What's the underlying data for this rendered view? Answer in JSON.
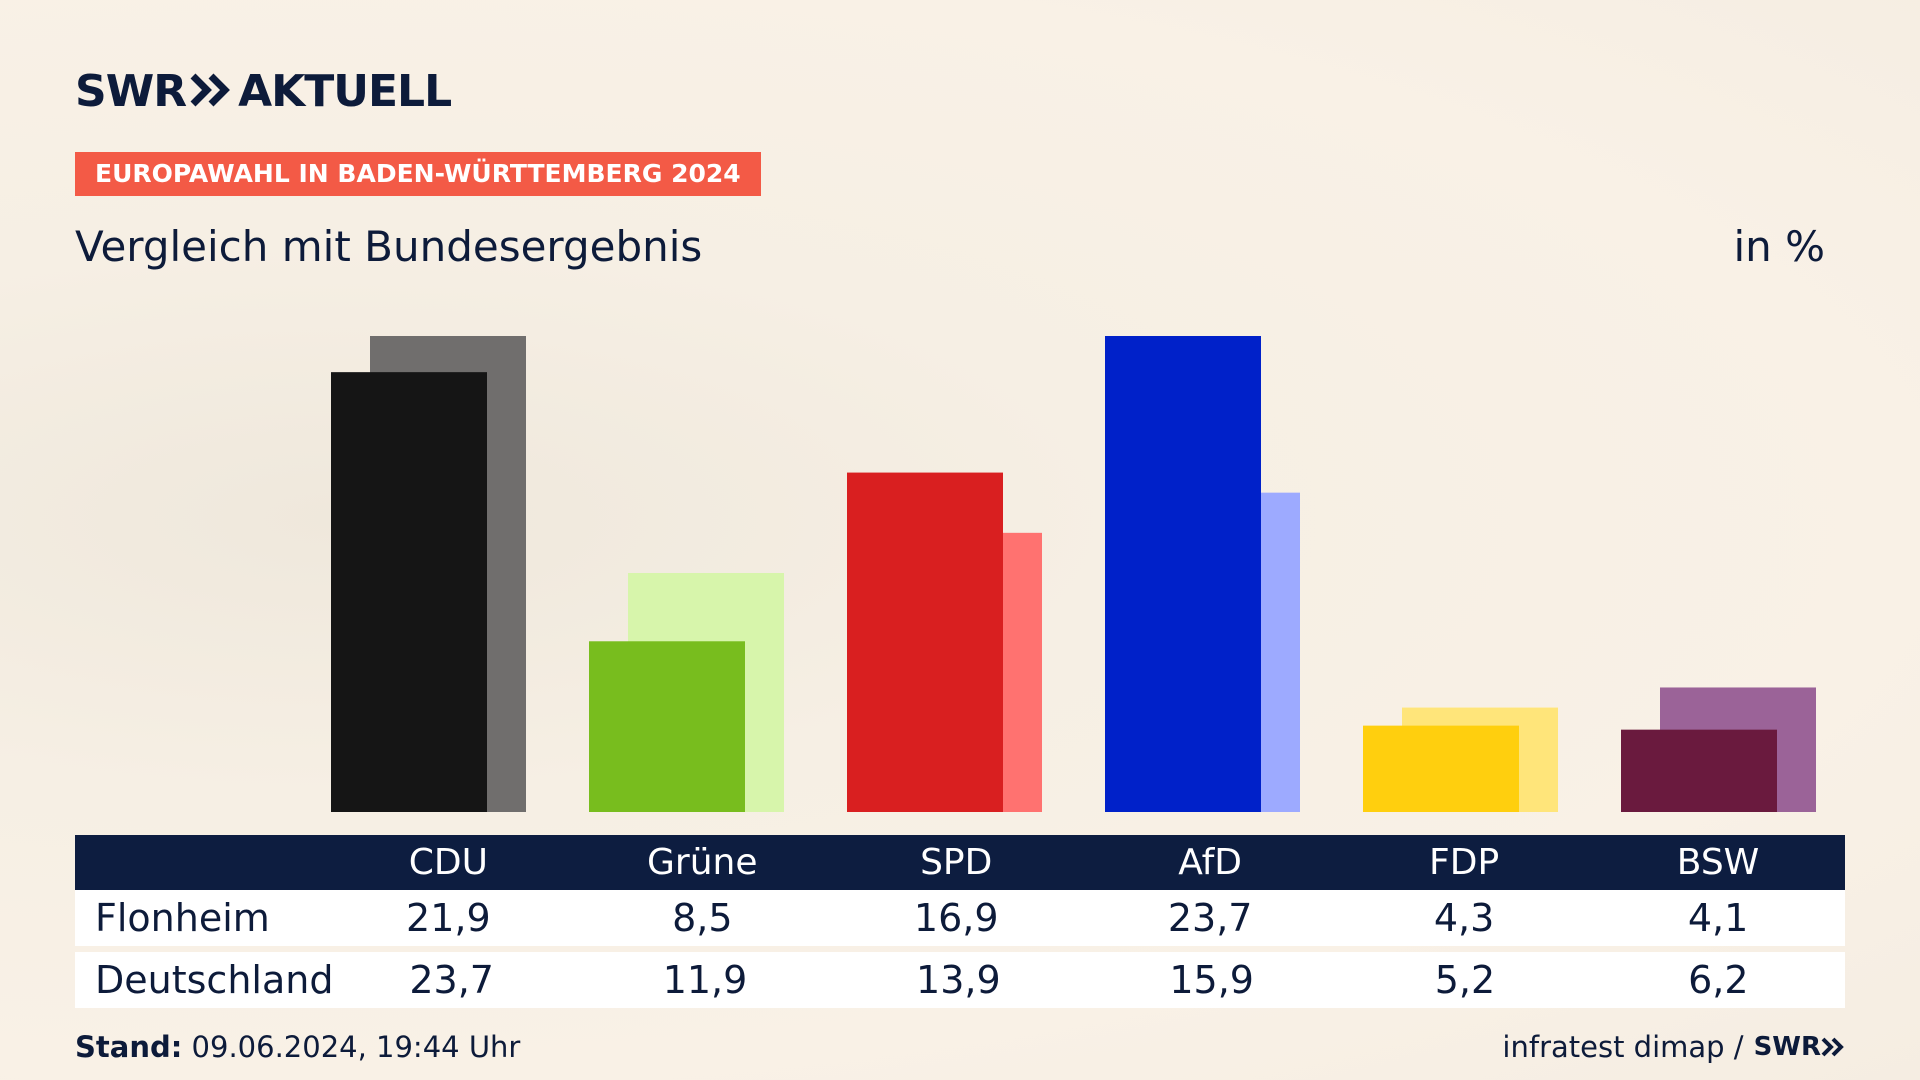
{
  "brand": {
    "logo_left": "SWR",
    "logo_right": "AKTUELL"
  },
  "ribbon": "EUROPAWAHL IN BADEN-WÜRTTEMBERG 2024",
  "subtitle": "Vergleich mit Bundesergebnis",
  "unit_label": "in %",
  "table": {
    "header_blank": "",
    "rows": [
      {
        "label": "Flonheim"
      },
      {
        "label": "Deutschland"
      }
    ]
  },
  "footer": {
    "stand_label": "Stand:",
    "stand_value": "09.06.2024, 19:44 Uhr",
    "source": "infratest dimap /",
    "source_logo": "SWR"
  },
  "chart_data": {
    "type": "bar",
    "categories": [
      "CDU",
      "Grüne",
      "SPD",
      "AfD",
      "FDP",
      "BSW"
    ],
    "series": [
      {
        "name": "Flonheim",
        "values": [
          21.9,
          8.5,
          16.9,
          23.7,
          4.3,
          4.1
        ],
        "display": [
          "21,9",
          "8,5",
          "16,9",
          "23,7",
          "4,3",
          "4,1"
        ]
      },
      {
        "name": "Deutschland",
        "values": [
          23.7,
          11.9,
          13.9,
          15.9,
          5.2,
          6.2
        ],
        "display": [
          "23,7",
          "11,9",
          "13,9",
          "15,9",
          "5,2",
          "6,2"
        ]
      }
    ],
    "colors_primary": [
      "#151515",
      "#78bd1e",
      "#d91f20",
      "#0021c9",
      "#ffcf0e",
      "#6a1a3e"
    ],
    "colors_secondary": [
      "#706e6d",
      "#d7f5ab",
      "#ff7270",
      "#9daaff",
      "#ffe57a",
      "#9b6398"
    ],
    "ylim": [
      0,
      23.7
    ],
    "grid": false
  }
}
